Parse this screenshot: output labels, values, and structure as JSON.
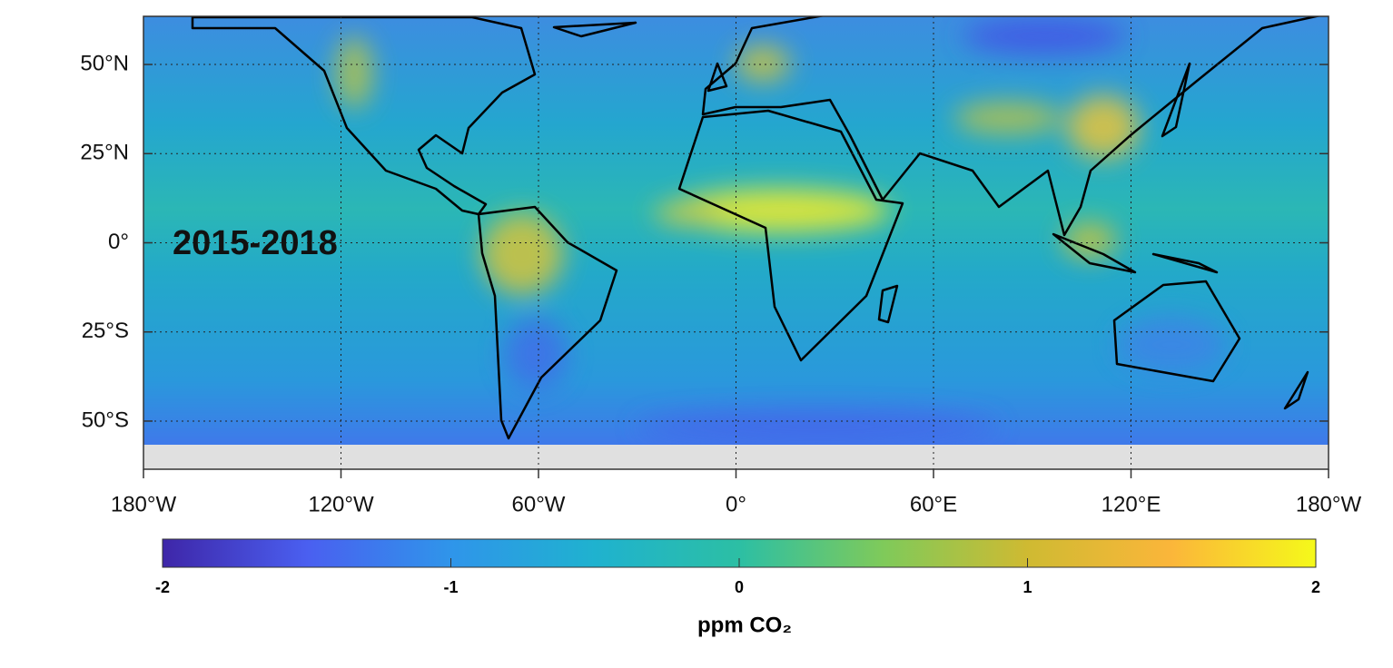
{
  "map": {
    "annotation": "2015-2018",
    "xlim": [
      -180,
      180
    ],
    "ylim": [
      -63.5,
      63.5
    ],
    "xticks": [
      {
        "value": -180,
        "label": "180°W"
      },
      {
        "value": -120,
        "label": "120°W"
      },
      {
        "value": -60,
        "label": "60°W"
      },
      {
        "value": 0,
        "label": "0°"
      },
      {
        "value": 60,
        "label": "60°E"
      },
      {
        "value": 120,
        "label": "120°E"
      },
      {
        "value": 180,
        "label": "180°W"
      }
    ],
    "yticks": [
      {
        "value": 50,
        "label": "50°N"
      },
      {
        "value": 25,
        "label": "25°N"
      },
      {
        "value": 0,
        "label": "0°"
      },
      {
        "value": -25,
        "label": "25°S"
      },
      {
        "value": -50,
        "label": "50°S"
      }
    ],
    "grid": true,
    "colorbar": {
      "lim": [
        -2,
        2
      ],
      "ticks": [
        -2,
        -1,
        0,
        1,
        2
      ],
      "label": "ppm CO₂",
      "colors": [
        "#3e26a8",
        "#4a5ff0",
        "#2f95ea",
        "#1fb2cf",
        "#2cbfa4",
        "#7fca5a",
        "#cfba32",
        "#fbb63a",
        "#f5f91a"
      ]
    }
  }
}
